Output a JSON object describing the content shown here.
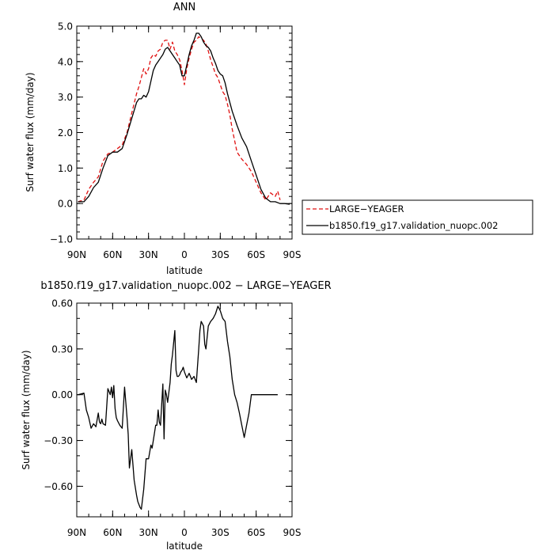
{
  "chart_data": [
    {
      "type": "line",
      "title": "ANN",
      "xlabel": "latitude",
      "ylabel": "Surf water flux (mm/day)",
      "xlim": [
        90,
        -90
      ],
      "ylim": [
        -1.0,
        5.0
      ],
      "x_tick_values": [
        90,
        60,
        30,
        0,
        -30,
        -60,
        -90
      ],
      "x_tick_labels": [
        "90N",
        "60N",
        "30N",
        "0",
        "30S",
        "60S",
        "90S"
      ],
      "y_tick_values": [
        -1.0,
        0.0,
        1.0,
        2.0,
        3.0,
        4.0,
        5.0
      ],
      "y_tick_labels": [
        "−1.0",
        "0.0",
        "1.0",
        "2.0",
        "3.0",
        "4.0",
        "5.0"
      ],
      "legend_position": "right",
      "series": [
        {
          "name": "LARGE−YEAGER",
          "color": "#e01010",
          "dash": true,
          "x": [
            89,
            84,
            80,
            76,
            72,
            68,
            64,
            60,
            56,
            52,
            48,
            44,
            40,
            38,
            36,
            34,
            32,
            30,
            28,
            26,
            24,
            22,
            20,
            18,
            16,
            14,
            12,
            10,
            8,
            6,
            4,
            2,
            0,
            -2,
            -4,
            -6,
            -8,
            -10,
            -12,
            -14,
            -16,
            -18,
            -20,
            -22,
            -24,
            -26,
            -28,
            -30,
            -32,
            -34,
            -36,
            -38,
            -40,
            -44,
            -48,
            -52,
            -56,
            -60,
            -64,
            -68,
            -72,
            -76,
            -78,
            -80
          ],
          "y": [
            0.05,
            0.1,
            0.4,
            0.6,
            0.75,
            1.2,
            1.4,
            1.45,
            1.55,
            1.65,
            2.0,
            2.55,
            3.1,
            3.3,
            3.55,
            3.8,
            3.65,
            3.8,
            4.1,
            4.2,
            4.15,
            4.3,
            4.35,
            4.55,
            4.6,
            4.6,
            4.35,
            4.55,
            4.3,
            4.2,
            4.05,
            3.75,
            3.35,
            3.8,
            4.1,
            4.35,
            4.55,
            4.6,
            4.7,
            4.65,
            4.6,
            4.5,
            4.3,
            4.05,
            3.85,
            3.65,
            3.55,
            3.35,
            3.15,
            3.05,
            2.8,
            2.5,
            2.1,
            1.45,
            1.25,
            1.1,
            0.9,
            0.6,
            0.3,
            0.1,
            0.3,
            0.2,
            0.35,
            0.1
          ]
        },
        {
          "name": "b1850.f19_g17.validation_nuopc.002",
          "color": "#000000",
          "dash": false,
          "x": [
            89,
            86,
            84,
            80,
            76,
            72,
            68,
            64,
            60,
            56,
            52,
            48,
            44,
            40,
            38,
            36,
            34,
            32,
            30,
            28,
            26,
            24,
            22,
            20,
            18,
            16,
            14,
            12,
            10,
            8,
            6,
            4,
            2,
            0,
            -2,
            -4,
            -6,
            -8,
            -10,
            -12,
            -14,
            -16,
            -18,
            -20,
            -22,
            -24,
            -26,
            -28,
            -30,
            -32,
            -34,
            -36,
            -40,
            -44,
            -48,
            -52,
            -56,
            -60,
            -64,
            -68,
            -72,
            -76,
            -80,
            -84,
            -88
          ],
          "y": [
            0.05,
            0.05,
            0.05,
            0.2,
            0.45,
            0.6,
            1.0,
            1.35,
            1.45,
            1.45,
            1.55,
            1.95,
            2.4,
            2.85,
            2.95,
            2.95,
            3.05,
            3.0,
            3.15,
            3.45,
            3.75,
            3.9,
            4.0,
            4.1,
            4.2,
            4.35,
            4.4,
            4.3,
            4.2,
            4.1,
            4.0,
            3.9,
            3.6,
            3.6,
            3.9,
            4.2,
            4.45,
            4.6,
            4.8,
            4.8,
            4.7,
            4.55,
            4.45,
            4.4,
            4.3,
            4.1,
            3.95,
            3.75,
            3.65,
            3.6,
            3.4,
            3.1,
            2.6,
            2.2,
            1.85,
            1.6,
            1.2,
            0.8,
            0.4,
            0.15,
            0.05,
            0.05,
            0.0,
            0.0,
            -0.02
          ]
        }
      ]
    },
    {
      "type": "line",
      "title": "b1850.f19_g17.validation_nuopc.002 − LARGE−YEAGER",
      "xlabel": "latitude",
      "ylabel": "Surf water flux (mm/day)",
      "xlim": [
        90,
        -90
      ],
      "ylim": [
        -0.8,
        0.6
      ],
      "x_tick_values": [
        90,
        60,
        30,
        0,
        -30,
        -60,
        -90
      ],
      "x_tick_labels": [
        "90N",
        "60N",
        "30N",
        "0",
        "30S",
        "60S",
        "90S"
      ],
      "y_tick_values": [
        -0.6,
        -0.3,
        0.0,
        0.3,
        0.6
      ],
      "y_tick_labels": [
        "−0.60",
        "−0.30",
        "0.00",
        "0.30",
        "0.60"
      ],
      "series": [
        {
          "color": "#000000",
          "dash": false,
          "x": [
            89,
            84,
            82,
            80,
            78,
            76,
            74,
            72,
            71,
            70,
            69,
            68,
            66,
            64,
            62,
            61,
            60,
            59,
            58,
            57,
            56,
            54,
            52,
            50,
            48,
            47,
            46,
            44,
            42,
            40,
            39,
            38,
            37,
            36,
            34,
            32,
            30,
            28,
            27,
            26,
            24,
            23,
            22,
            21,
            20,
            18,
            17,
            16,
            15,
            14,
            12,
            11,
            10,
            8,
            7,
            6,
            5,
            4,
            3,
            2,
            1,
            0,
            -2,
            -4,
            -6,
            -8,
            -10,
            -12,
            -13,
            -14,
            -16,
            -17,
            -18,
            -20,
            -22,
            -24,
            -26,
            -28,
            -30,
            -32,
            -34,
            -36,
            -38,
            -40,
            -42,
            -44,
            -46,
            -48,
            -50,
            -52,
            -54,
            -56,
            -58,
            -60,
            -64,
            -68,
            -72,
            -76,
            -78
          ],
          "y": [
            0.0,
            0.01,
            -0.1,
            -0.15,
            -0.22,
            -0.19,
            -0.21,
            -0.12,
            -0.18,
            -0.19,
            -0.16,
            -0.19,
            -0.2,
            0.04,
            0.0,
            0.05,
            -0.02,
            0.06,
            -0.09,
            -0.15,
            -0.17,
            -0.2,
            -0.22,
            0.05,
            -0.15,
            -0.26,
            -0.48,
            -0.36,
            -0.56,
            -0.66,
            -0.7,
            -0.72,
            -0.74,
            -0.75,
            -0.62,
            -0.42,
            -0.42,
            -0.33,
            -0.35,
            -0.3,
            -0.2,
            -0.2,
            -0.1,
            -0.18,
            -0.2,
            0.07,
            -0.29,
            0.03,
            0.0,
            -0.05,
            0.08,
            0.2,
            0.26,
            0.42,
            0.16,
            0.12,
            0.12,
            0.13,
            0.15,
            0.16,
            0.18,
            0.15,
            0.11,
            0.14,
            0.1,
            0.12,
            0.08,
            0.3,
            0.42,
            0.48,
            0.45,
            0.33,
            0.3,
            0.45,
            0.48,
            0.5,
            0.53,
            0.58,
            0.55,
            0.5,
            0.48,
            0.35,
            0.25,
            0.1,
            0.0,
            -0.05,
            -0.12,
            -0.2,
            -0.28,
            -0.2,
            -0.12,
            0.0,
            0.0,
            0.0,
            0.0,
            0.0,
            0.0,
            0.0,
            0.0
          ]
        }
      ]
    }
  ]
}
